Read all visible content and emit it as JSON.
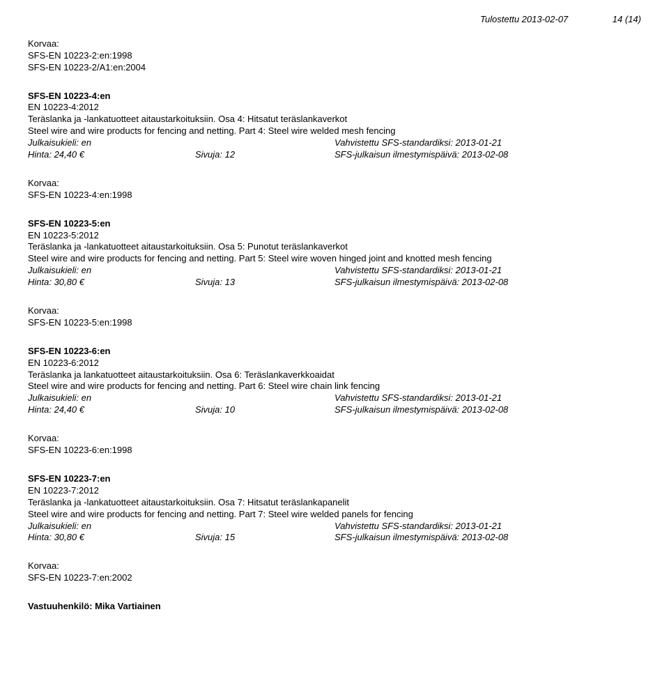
{
  "header": {
    "printed": "Tulostettu 2013-02-07",
    "page": "14 (14)"
  },
  "korvaa_label": "Korvaa:",
  "top_korvaa": {
    "lines": [
      "SFS-EN 10223-2:en:1998",
      "SFS-EN 10223-2/A1:en:2004"
    ]
  },
  "entries": [
    {
      "code_bold": "SFS-EN 10223-4:en",
      "en_code": "EN 10223-4:2012",
      "title_fi": "Teräslanka ja -lankatuotteet aitaustarkoituksiin. Osa 4: Hitsatut teräslankaverkot",
      "title_en": "Steel wire and wire products for fencing and netting. Part 4: Steel wire welded mesh fencing",
      "lang": "Julkaisukieli: en",
      "std": "Vahvistettu SFS-standardiksi: 2013-01-21",
      "price": "Hinta: 24,40 €",
      "pages": "Sivuja: 12",
      "pub": "SFS-julkaisun ilmestymispäivä: 2013-02-08",
      "korvaa": [
        "SFS-EN 10223-4:en:1998"
      ]
    },
    {
      "code_bold": "SFS-EN 10223-5:en",
      "en_code": "EN 10223-5:2012",
      "title_fi": "Teräslanka ja -lankatuotteet aitaustarkoituksiin. Osa 5: Punotut teräslankaverkot",
      "title_en": "Steel wire and wire products for fencing and netting. Part 5: Steel wire woven hinged joint and knotted mesh fencing",
      "lang": "Julkaisukieli: en",
      "std": "Vahvistettu SFS-standardiksi: 2013-01-21",
      "price": "Hinta: 30,80 €",
      "pages": "Sivuja: 13",
      "pub": "SFS-julkaisun ilmestymispäivä: 2013-02-08",
      "korvaa": [
        "SFS-EN 10223-5:en:1998"
      ]
    },
    {
      "code_bold": "SFS-EN 10223-6:en",
      "en_code": "EN 10223-6:2012",
      "title_fi": "Teräslanka ja lankatuotteet aitaustarkoituksiin. Osa 6: Teräslankaverkkoaidat",
      "title_en": "Steel wire and wire products for fencing and netting. Part 6: Steel wire chain link fencing",
      "lang": "Julkaisukieli: en",
      "std": "Vahvistettu SFS-standardiksi: 2013-01-21",
      "price": "Hinta: 24,40 €",
      "pages": "Sivuja: 10",
      "pub": "SFS-julkaisun ilmestymispäivä: 2013-02-08",
      "korvaa": [
        "SFS-EN 10223-6:en:1998"
      ]
    },
    {
      "code_bold": "SFS-EN 10223-7:en",
      "en_code": "EN 10223-7:2012",
      "title_fi": "Teräslanka ja -lankatuotteet aitaustarkoituksiin. Osa 7: Hitsatut teräslankapanelit",
      "title_en": "Steel wire and wire products for fencing and netting. Part 7: Steel wire welded panels for fencing",
      "lang": "Julkaisukieli: en",
      "std": "Vahvistettu SFS-standardiksi: 2013-01-21",
      "price": "Hinta: 30,80 €",
      "pages": "Sivuja: 15",
      "pub": "SFS-julkaisun ilmestymispäivä: 2013-02-08",
      "korvaa": [
        "SFS-EN 10223-7:en:2002"
      ]
    }
  ],
  "vastuu": "Vastuuhenkilö: Mika Vartiainen"
}
